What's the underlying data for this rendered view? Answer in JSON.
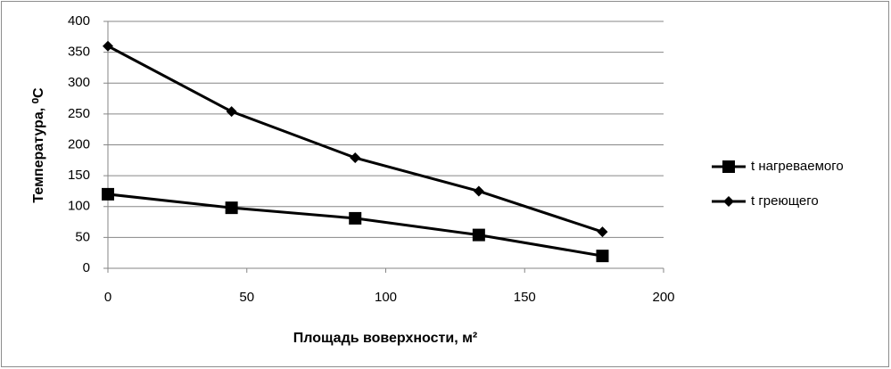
{
  "chart_data": {
    "type": "line",
    "x_label": "Площадь воверхности, м²",
    "y_label": "Температура, ⁰C",
    "x": [
      0,
      44.5,
      89,
      133.5,
      178
    ],
    "series": [
      {
        "name": "t нагреваемого",
        "color": "#000000",
        "marker": "square",
        "values": [
          120,
          98,
          81,
          54,
          20
        ]
      },
      {
        "name": "t греющего",
        "color": "#000000",
        "marker": "diamond",
        "values": [
          360,
          254,
          179,
          125,
          59
        ]
      }
    ],
    "xlim": [
      0,
      200
    ],
    "xticks": [
      0,
      50,
      100,
      150,
      200
    ],
    "ylim": [
      0,
      400
    ],
    "yticks": [
      0,
      50,
      100,
      150,
      200,
      250,
      300,
      350,
      400
    ],
    "grid": true,
    "legend": "right"
  }
}
